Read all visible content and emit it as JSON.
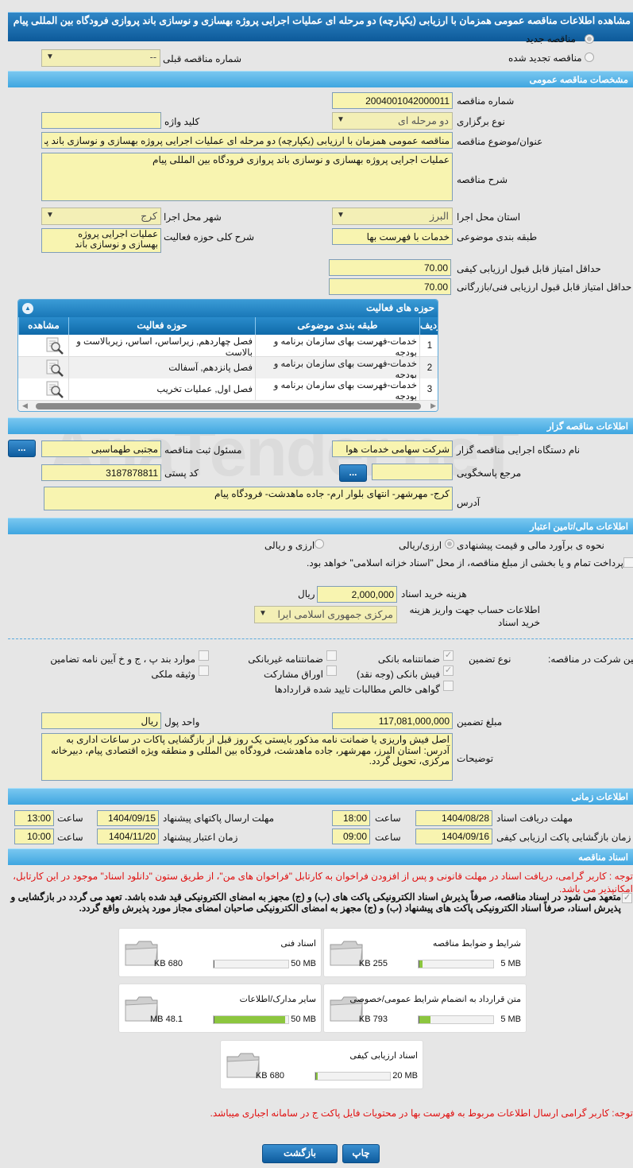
{
  "title": "مشاهده اطلاعات مناقصه عمومی همزمان با ارزیابی (یکپارچه) دو مرحله ای عملیات اجرایی پروژه بهسازی و نوسازی باند پروازی فرودگاه بین المللی پیام",
  "watermark": "AriaTender.neT",
  "tender_type": {
    "new_label": "مناقصه جدید",
    "renewed_label": "مناقصه تجدید شده",
    "selected": "new",
    "prev_number_label": "شماره مناقصه قبلی",
    "prev_number_value": "--"
  },
  "general": {
    "header": "مشخصات مناقصه عمومی",
    "number_label": "شماره مناقصه",
    "number": "2004001042000011",
    "holding_type_label": "نوع برگزاری",
    "holding_type": "دو مرحله ای",
    "keyword_label": "کلید واژه",
    "keyword": "",
    "subject_label": "عنوان/موضوع مناقصه",
    "subject": "مناقصه عمومی همزمان با ارزیابی (یکپارچه) دو مرحله ای عملیات اجرایی پروژه بهسازی و نوسازی باند پروازی فرودگاه بین المللی پیام",
    "description_label": "شرح مناقصه",
    "description": "عملیات اجرایی پروژه بهسازی و نوسازی باند پروازی فرودگاه بین المللی پیام",
    "province_label": "استان محل اجرا",
    "province": "البرز",
    "city_label": "شهر محل اجرا",
    "city": "کرج",
    "category_label": "طبقه بندی موضوعی",
    "category": "خدمات با فهرست بها",
    "activity_desc_label": "شرح کلی حوزه فعالیت",
    "activity_desc": "عملیات اجرایی پروژه بهسازی و نوسازی باند",
    "min_quality_label": "حداقل امتیاز قابل قبول ارزیابی کیفی",
    "min_quality": "70.00",
    "min_tech_label": "حداقل امتیاز قابل قبول ارزیابی فنی/بازرگانی",
    "min_tech": "70.00"
  },
  "activities": {
    "header": "حوزه های فعالیت",
    "columns": [
      "ردیف",
      "طبقه بندی موضوعی",
      "حوزه فعالیت",
      "مشاهده"
    ],
    "rows": [
      {
        "n": "1",
        "category": "خدمات-فهرست بهای سازمان برنامه و بودجه",
        "field": "فصل چهاردهم, زیراساس، اساس، زیربالاست  و بالاست"
      },
      {
        "n": "2",
        "category": "خدمات-فهرست بهای سازمان برنامه و بودجه",
        "field": "فصل پانزدهم, آسفالت"
      },
      {
        "n": "3",
        "category": "خدمات-فهرست بهای سازمان برنامه و بودجه",
        "field": "فصل اول, عملیات تخریب"
      }
    ]
  },
  "organizer": {
    "header": "اطلاعات مناقصه گزار",
    "org_label": "نام دستگاه اجرایی مناقصه گزار",
    "org": "شرکت سهامی خدمات هوا",
    "registrar_label": "مسئول ثبت مناقصه",
    "registrar": "مجتبی طهماسبی",
    "more_button": "...",
    "reference_label": "مرجع پاسخگویی",
    "reference": "",
    "postal_label": "کد پستی",
    "postal": "3187878811",
    "address_label": "آدرس",
    "address": "کرج- مهرشهر- انتهای بلوار ارم- جاده ماهدشت- فرودگاه پیام"
  },
  "finance": {
    "header": "اطلاعات مالی/تامین اعتبار",
    "estimate_label": "نحوه ی برآورد مالی و قیمت پیشنهادی",
    "opt1": "ارزی/ریالی",
    "opt2": "ارزی و ریالی",
    "selected": "opt1",
    "treasury_text": "پرداخت تمام و یا بخشی از مبلغ مناقصه، از محل \"اسناد خزانه اسلامی\" خواهد بود.",
    "treasury_checked": false,
    "doc_fee_label": "هزینه خرید اسناد",
    "doc_fee": "2,000,000",
    "doc_fee_unit": "ریال",
    "account_label": "اطلاعات حساب جهت واریز هزینه خرید اسناد",
    "account": "مرکزی جمهوری اسلامی ایرا"
  },
  "guarantee": {
    "label": "تضمین شرکت در مناقصه:",
    "type_label": "نوع تضمین",
    "options": [
      {
        "label": "ضمانتنامه بانکی",
        "checked": true
      },
      {
        "label": "ضمانتنامه غیربانکی",
        "checked": false
      },
      {
        "label": "موارد بند پ ، ج و خ آیین نامه تضامین",
        "checked": false
      },
      {
        "label": "فیش بانکی (وجه نقد)",
        "checked": true
      },
      {
        "label": "اوراق مشارکت",
        "checked": false
      },
      {
        "label": "وثیقه ملکی",
        "checked": false
      },
      {
        "label": "گواهی خالص مطالبات تایید شده قراردادها",
        "checked": false
      }
    ],
    "amount_label": "مبلغ تضمین",
    "amount": "117,081,000,000",
    "currency_label": "واحد پول",
    "currency": "ریال",
    "notes_label": "توضیحات",
    "notes": "اصل فیش واریزی یا ضمانت نامه مذکور بایستی یک روز قبل از بازگشایی پاکات در ساعات اداری به آدرس: استان البرز، مهرشهر، جاده ماهدشت، فرودگاه بین المللی و منطقه ویژه اقتصادی پیام، دبیرخانه مرکزی، تحویل گردد."
  },
  "timing": {
    "header": "اطلاعات زمانی",
    "hour_label": "ساعت",
    "doc_deadline_label": "مهلت دریافت اسناد",
    "doc_deadline_date": "1404/08/28",
    "doc_deadline_time": "18:00",
    "submit_deadline_label": "مهلت ارسال پاکتهای پیشنهاد",
    "submit_deadline_date": "1404/09/15",
    "submit_deadline_time": "13:00",
    "quality_open_label": "زمان بازگشایی پاکت ارزیابی کیفی",
    "quality_open_date": "1404/09/16",
    "quality_open_time": "09:00",
    "validity_label": "زمان اعتبار پیشنهاد",
    "validity_date": "1404/11/20",
    "validity_time": "10:00"
  },
  "documents": {
    "header": "اسناد مناقصه",
    "notice": "توجه : کاربر گرامی، دریافت اسناد در مهلت قانونی و پس از افزودن فراخوان به کارتابل \"فراخوان های من\"، از طریق ستون \"دانلود اسناد\" موجود در این کارتابل، امکانپذیر می باشد.",
    "commitment": "متعهد می شود در اسناد مناقصه، صرفاً پذیرش اسناد الکترونیکی پاکت های (ب) و (ج) مجهز به امضای الکترونیکی قید شده باشد. تعهد می گردد در بازگشایی و پذیرش اسناد، صرفاً اسناد الکترونیکی پاکت های پیشنهاد (ب) و (ج) مجهز به امضای الکترونیکی صاحبان امضای مجاز مورد پذیرش واقع گردد.",
    "files": [
      {
        "title": "شرایط و ضوابط مناقصه",
        "max": "5 MB",
        "used": "255 KB",
        "fill_percent": 5
      },
      {
        "title": "اسناد فنی",
        "max": "50 MB",
        "used": "680 KB",
        "fill_percent": 1.3
      },
      {
        "title": "متن قرارداد به انضمام شرایط عمومی/خصوصی",
        "max": "5 MB",
        "used": "793 KB",
        "fill_percent": 15.5
      },
      {
        "title": "سایر مدارک/اطلاعات",
        "max": "50 MB",
        "used": "48.1 MB",
        "fill_percent": 96
      },
      {
        "title": "اسناد ارزیابی کیفی",
        "max": "20 MB",
        "used": "680 KB",
        "fill_percent": 3.3
      }
    ],
    "price_note": "توجه: کاربر گرامی ارسال اطلاعات مربوط به فهرست بها در محتویات فایل پاکت ج در سامانه اجباری میباشد."
  },
  "actions": {
    "print": "چاپ",
    "back": "بازگشت"
  },
  "colors": {
    "header_dark": "#0d5a9a",
    "section": "#3fa6e0",
    "input_bg": "#f8f4b0",
    "progress": "#8cc63f",
    "notice": "#e01010"
  }
}
